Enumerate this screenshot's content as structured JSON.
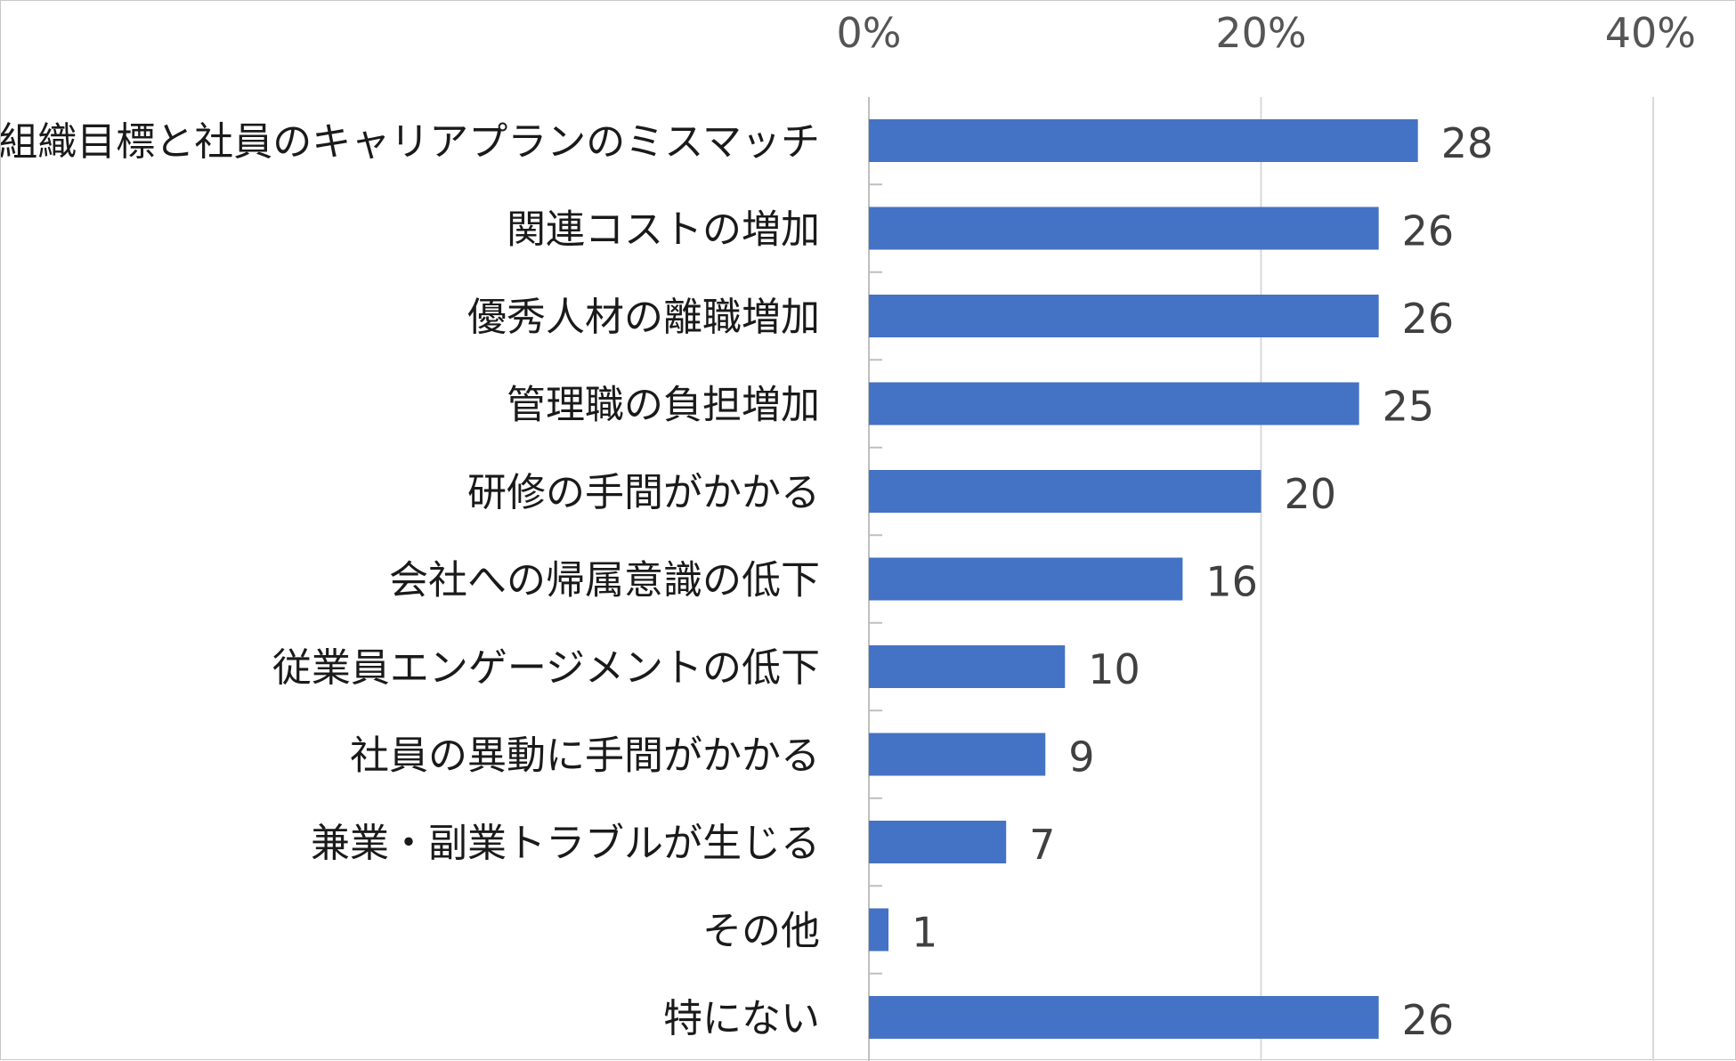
{
  "chart_data": {
    "type": "bar",
    "orientation": "horizontal",
    "categories": [
      "組織目標と社員のキャリアプランのミスマッチ",
      "関連コストの増加",
      "優秀人材の離職増加",
      "管理職の負担増加",
      "研修の手間がかかる",
      "会社への帰属意識の低下",
      "従業員エンゲージメントの低下",
      "社員の異動に手間がかかる",
      "兼業・副業トラブルが生じる",
      "その他",
      "特にない"
    ],
    "values": [
      28,
      26,
      26,
      25,
      20,
      16,
      10,
      9,
      7,
      1,
      26
    ],
    "data_labels": [
      "28",
      "26",
      "26",
      "25",
      "20",
      "16",
      "10",
      "9",
      "7",
      "1",
      "26"
    ],
    "xlim": [
      0,
      40
    ],
    "xticks": [
      0,
      20,
      40
    ],
    "xtick_labels": [
      "0%",
      "20%",
      "40%"
    ],
    "x_axis_position": "top",
    "grid": true,
    "legend": "none",
    "bar_color": "#4472C4",
    "title": "",
    "xlabel": "",
    "ylabel": ""
  }
}
